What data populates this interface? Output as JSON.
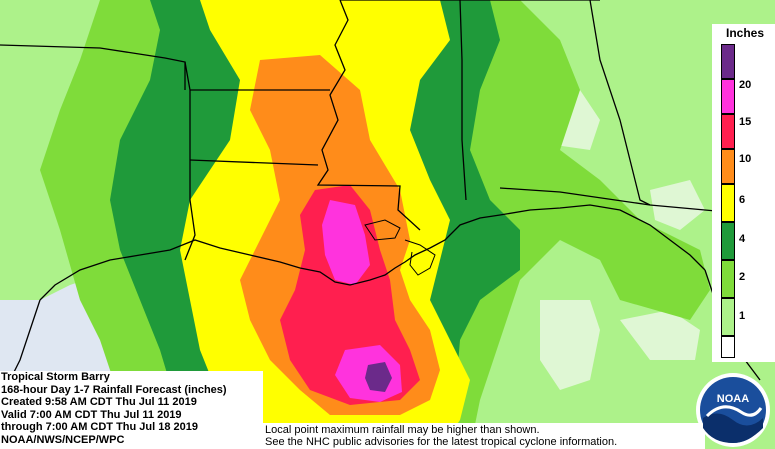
{
  "map": {
    "storm_label": "Tropical Storm Barry",
    "product_label": "168-hour Day 1-7 Rainfall Forecast (inches)",
    "created": "Created 9:58 AM CDT Thu Jul 11 2019",
    "valid": "Valid 7:00 AM CDT Thu Jul 11 2019",
    "through": "through 7:00 AM CDT Thu Jul 18 2019",
    "agency": "NOAA/NWS/NCEP/WPC",
    "note_line1": "Local point maximum rainfall may be higher than shown.",
    "note_line2": "See the NHC public advisories for the latest tropical cyclone information."
  },
  "legend": {
    "title": "Inches",
    "ticks": [
      "20",
      "15",
      "10",
      "6",
      "4",
      "2",
      "1"
    ],
    "colors": {
      "over20": "#6b2a8a",
      "c15_20": "#ff33dd",
      "c10_15": "#ff1f4f",
      "c6_10": "#ff8c1a",
      "c4_6": "#ffff00",
      "c2_4": "#1f9a3a",
      "c1_2": "#7fdc3a",
      "c05_1": "#adf28a",
      "c0_05": "#ffffff"
    }
  },
  "logo": {
    "text": "NOAA",
    "icon": "noaa-logo-icon",
    "colors": {
      "sky": "#1a4e9c",
      "ring": "#ffffff",
      "sea": "#0b2f6b"
    }
  },
  "base_colors": {
    "water": "#dfe7f2",
    "land_light": "#b9f09a",
    "border": "#000000"
  }
}
